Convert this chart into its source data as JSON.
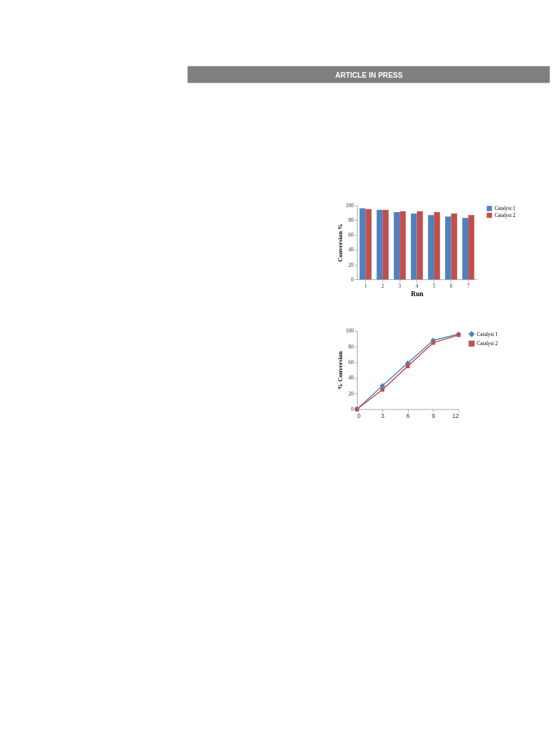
{
  "chart_data": [
    {
      "type": "bar",
      "annotations": [
        "ARTICLE IN PRESS"
      ],
      "xlabel": "Run",
      "ylabel": "Conversion %",
      "categories": [
        "1",
        "2",
        "3",
        "4",
        "5",
        "6",
        "7"
      ],
      "series": [
        {
          "name": "Catalyst 1",
          "color": "#4f81bd",
          "values": [
            96,
            94,
            91,
            89,
            87,
            85,
            83
          ]
        },
        {
          "name": "Catalyst 2",
          "color": "#c0504d",
          "values": [
            95,
            94,
            92,
            92,
            91,
            89,
            87
          ]
        }
      ],
      "ylim": [
        0,
        100
      ],
      "yticks": [
        0,
        20,
        40,
        60,
        80,
        100
      ],
      "grid": false,
      "legend": "right"
    },
    {
      "type": "line",
      "ylabel": "% Conversion",
      "x": [
        0,
        3,
        6,
        9,
        12
      ],
      "series": [
        {
          "name": "Catalyst 1",
          "color": "#4f81bd",
          "marker": "diamond",
          "values": [
            0,
            30,
            59,
            88,
            96
          ]
        },
        {
          "name": "Catalyst 2",
          "color": "#c0504d",
          "marker": "square",
          "values": [
            0,
            25,
            55,
            85,
            95
          ]
        }
      ],
      "xlim": [
        0,
        12
      ],
      "xticks": [
        0,
        3,
        6,
        9,
        12
      ],
      "ylim": [
        0,
        100
      ],
      "yticks": [
        0,
        20,
        40,
        60,
        80,
        100
      ],
      "grid": false,
      "legend": "right"
    }
  ]
}
